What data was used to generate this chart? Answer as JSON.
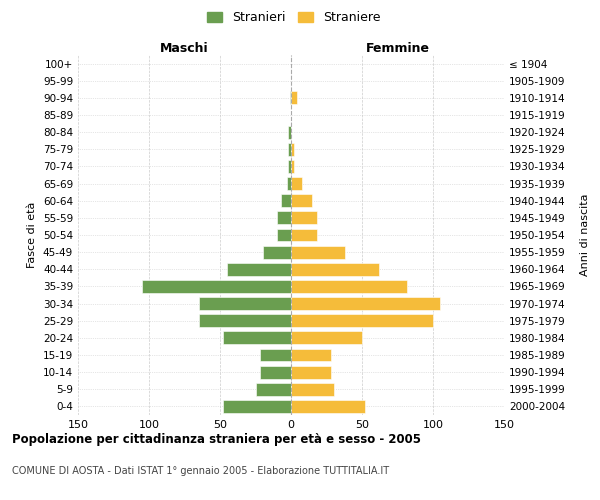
{
  "age_groups": [
    "100+",
    "95-99",
    "90-94",
    "85-89",
    "80-84",
    "75-79",
    "70-74",
    "65-69",
    "60-64",
    "55-59",
    "50-54",
    "45-49",
    "40-44",
    "35-39",
    "30-34",
    "25-29",
    "20-24",
    "15-19",
    "10-14",
    "5-9",
    "0-4"
  ],
  "birth_years": [
    "≤ 1904",
    "1905-1909",
    "1910-1914",
    "1915-1919",
    "1920-1924",
    "1925-1929",
    "1930-1934",
    "1935-1939",
    "1940-1944",
    "1945-1949",
    "1950-1954",
    "1955-1959",
    "1960-1964",
    "1965-1969",
    "1970-1974",
    "1975-1979",
    "1980-1984",
    "1985-1989",
    "1990-1994",
    "1995-1999",
    "2000-2004"
  ],
  "maschi": [
    0,
    0,
    1,
    0,
    2,
    2,
    2,
    3,
    7,
    10,
    10,
    20,
    45,
    105,
    65,
    65,
    48,
    22,
    22,
    25,
    48
  ],
  "femmine": [
    0,
    0,
    4,
    0,
    0,
    2,
    2,
    8,
    15,
    18,
    18,
    38,
    62,
    82,
    105,
    100,
    50,
    28,
    28,
    30,
    52
  ],
  "color_maschi": "#6a9e50",
  "color_femmine": "#f5bc3a",
  "title": "Popolazione per cittadinanza straniera per età e sesso - 2005",
  "subtitle": "COMUNE DI AOSTA - Dati ISTAT 1° gennaio 2005 - Elaborazione TUTTITALIA.IT",
  "xlabel_left": "Maschi",
  "xlabel_right": "Femmine",
  "ylabel_left": "Fasce di età",
  "ylabel_right": "Anni di nascita",
  "legend_maschi": "Stranieri",
  "legend_femmine": "Straniere",
  "xlim": 150,
  "background_color": "#ffffff",
  "grid_color": "#cccccc"
}
